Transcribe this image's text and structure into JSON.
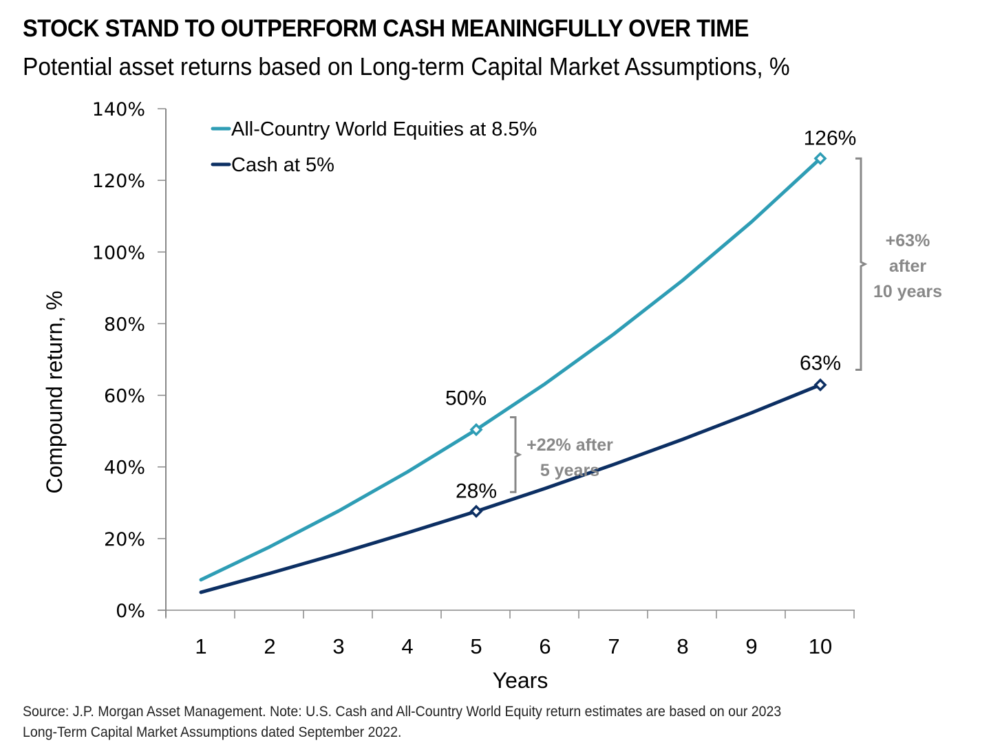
{
  "header": {
    "title": "STOCK STAND TO OUTPERFORM CASH MEANINGFULLY OVER TIME",
    "subtitle": "Potential asset returns based on Long-term Capital Market Assumptions, %"
  },
  "footer": {
    "source_line1": "Source: J.P. Morgan Asset Management. Note: U.S. Cash and All-Country World Equity return estimates are based on our 2023",
    "source_line2": "Long-Term Capital Market Assumptions dated September 2022."
  },
  "chart_data": {
    "type": "line",
    "title": "STOCK STAND TO OUTPERFORM CASH MEANINGFULLY OVER TIME",
    "subtitle": "Potential asset returns based on Long-term Capital Market Assumptions, %",
    "xlabel": "Years",
    "ylabel": "Compound return, %",
    "x": [
      1,
      2,
      3,
      4,
      5,
      6,
      7,
      8,
      9,
      10
    ],
    "xticks": [
      "1",
      "2",
      "3",
      "4",
      "5",
      "6",
      "7",
      "8",
      "9",
      "10"
    ],
    "ylim": [
      0,
      140
    ],
    "yticks": [
      0,
      20,
      40,
      60,
      80,
      100,
      120,
      140
    ],
    "ytick_labels": [
      "0%",
      "20%",
      "40%",
      "60%",
      "80%",
      "100%",
      "120%",
      "140%"
    ],
    "grid": false,
    "legend_position": "top-left",
    "series": [
      {
        "name": "All-Country World Equities at 8.5%",
        "color": "#2e9db5",
        "values": [
          8.5,
          17.7,
          27.7,
          38.6,
          50.4,
          63.2,
          77.1,
          92.1,
          108.4,
          126.1
        ],
        "markers_at": [
          5,
          10
        ]
      },
      {
        "name": "Cash at 5%",
        "color": "#0c2f63",
        "values": [
          5.0,
          10.3,
          15.8,
          21.6,
          27.6,
          34.0,
          40.7,
          47.7,
          55.1,
          62.9
        ],
        "markers_at": [
          5,
          10
        ]
      }
    ],
    "data_labels": [
      {
        "series": 0,
        "x": 5,
        "text": "50%"
      },
      {
        "series": 1,
        "x": 5,
        "text": "28%"
      },
      {
        "series": 0,
        "x": 10,
        "text": "126%"
      },
      {
        "series": 1,
        "x": 10,
        "text": "63%"
      }
    ],
    "annotations": [
      {
        "x": 5,
        "from": 27.6,
        "to": 50.4,
        "lines": [
          "+22% after",
          "5 years"
        ],
        "color": "#888888"
      },
      {
        "x": 10,
        "from": 62.9,
        "to": 126.1,
        "lines": [
          "+63%",
          "after",
          "10 years"
        ],
        "color": "#888888"
      }
    ]
  }
}
